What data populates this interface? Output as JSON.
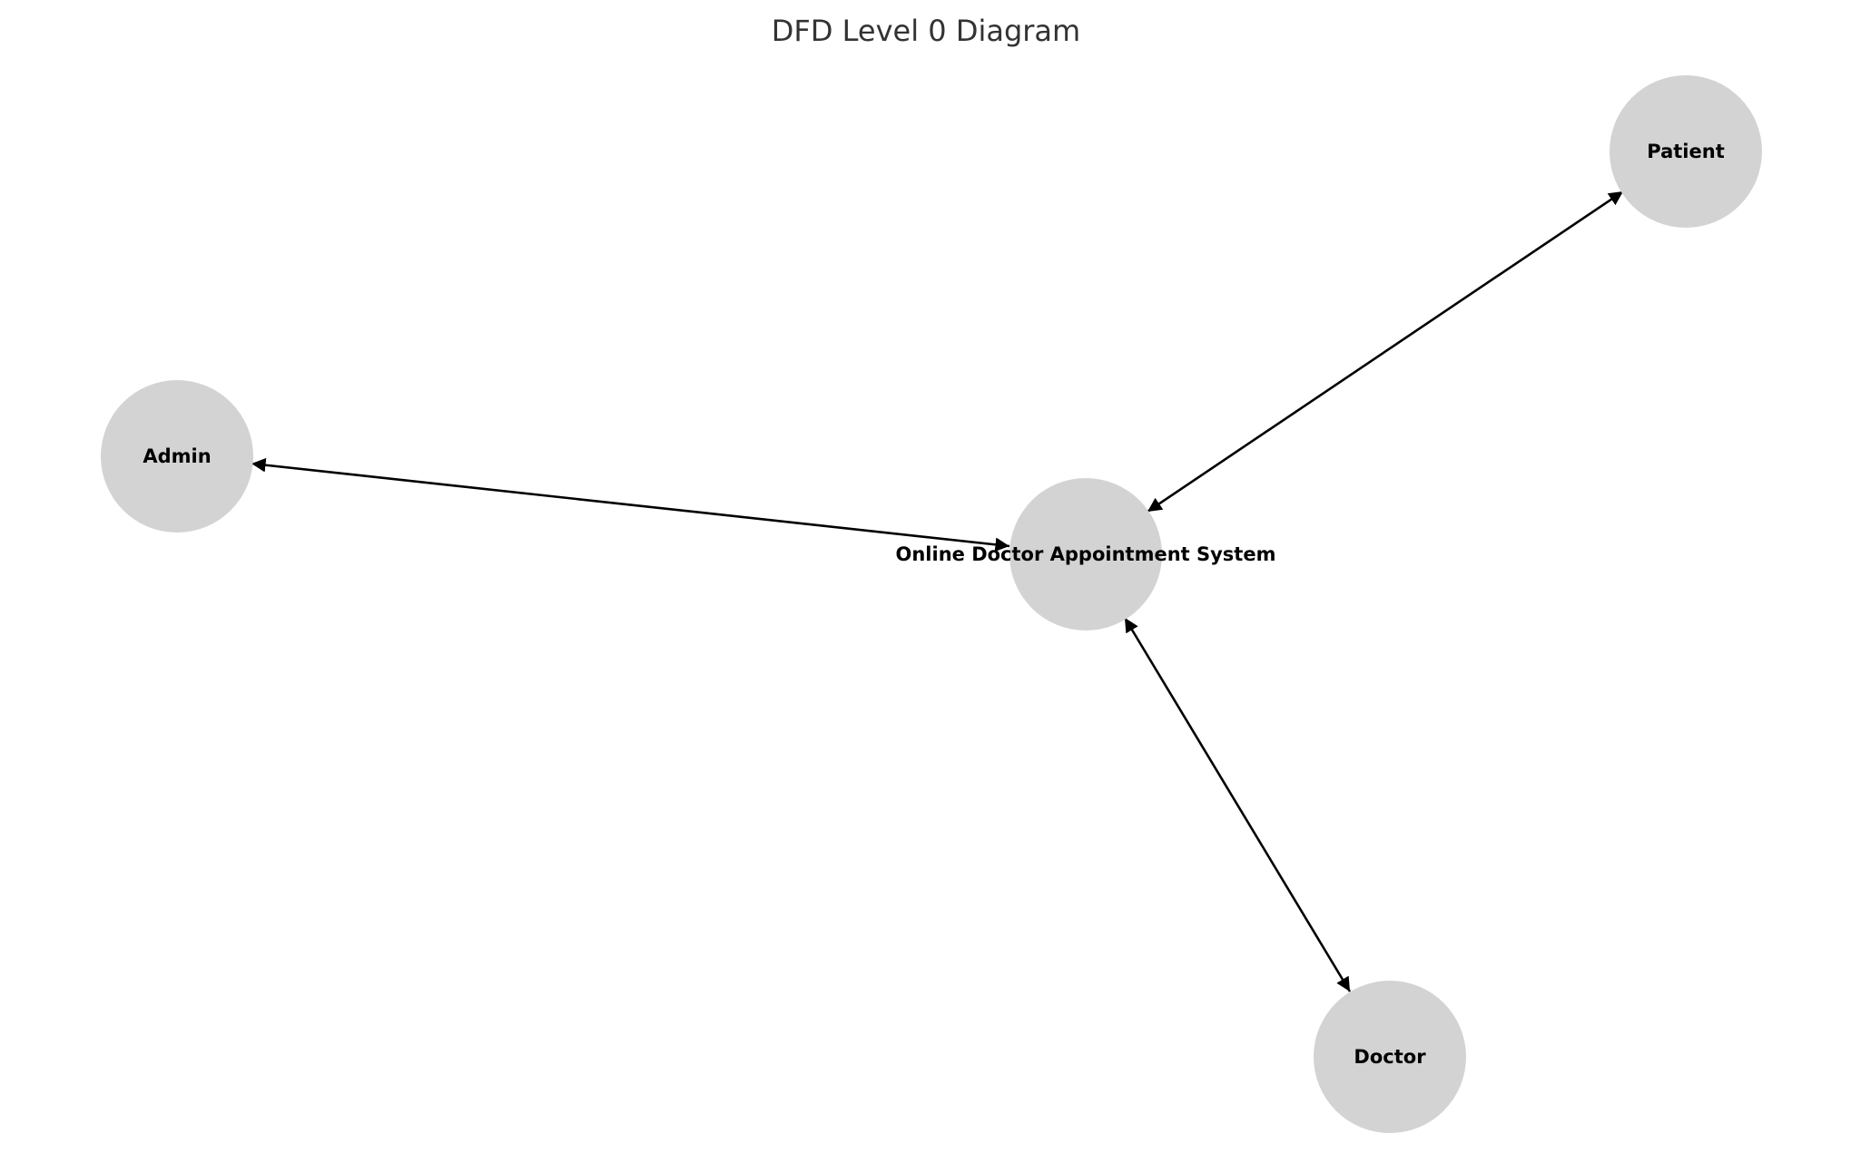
{
  "diagram": {
    "title": "DFD Level 0 Diagram",
    "colors": {
      "node_fill": "#d3d3d3",
      "edge": "#000000",
      "title": "#333333"
    },
    "nodes": [
      {
        "id": "system",
        "label": "Online Doctor Appointment System"
      },
      {
        "id": "patient",
        "label": "Patient"
      },
      {
        "id": "admin",
        "label": "Admin"
      },
      {
        "id": "doctor",
        "label": "Doctor"
      }
    ],
    "edges": [
      {
        "from": "system",
        "to": "patient",
        "direction": "both"
      },
      {
        "from": "system",
        "to": "admin",
        "direction": "both"
      },
      {
        "from": "system",
        "to": "doctor",
        "direction": "both"
      }
    ]
  }
}
